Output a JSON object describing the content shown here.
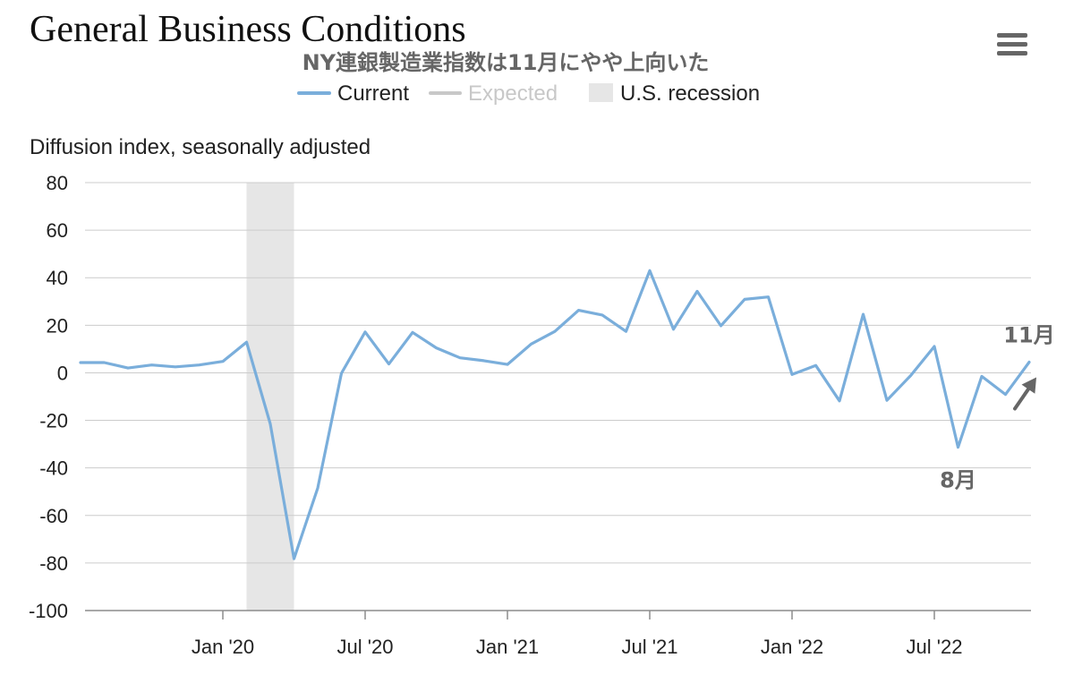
{
  "chart_data": {
    "type": "line",
    "title": "General Business Conditions",
    "subtitle": "NY連銀製造業指数は11月にやや上向いた",
    "ylabel": "Diffusion index, seasonally adjusted",
    "ylim": [
      -100,
      80
    ],
    "yticks": [
      80,
      60,
      40,
      20,
      0,
      -20,
      -40,
      -60,
      -80,
      -100
    ],
    "grid": true,
    "legend": {
      "placement": "top-center",
      "items": [
        {
          "label": "Current",
          "color": "#7aaedb",
          "kind": "line",
          "active": true
        },
        {
          "label": "Expected",
          "color": "#c8c8c8",
          "kind": "line",
          "active": false
        },
        {
          "label": "U.S. recession",
          "color": "#e6e6e6",
          "kind": "box",
          "active": true
        }
      ]
    },
    "x_ticks": [
      {
        "label": "Jan '20",
        "date": "2020-01"
      },
      {
        "label": "Jul '20",
        "date": "2020-07"
      },
      {
        "label": "Jan '21",
        "date": "2021-01"
      },
      {
        "label": "Jul '21",
        "date": "2021-07"
      },
      {
        "label": "Jan '22",
        "date": "2022-01"
      },
      {
        "label": "Jul '22",
        "date": "2022-07"
      }
    ],
    "x_range": [
      "2019-07",
      "2022-11"
    ],
    "recession": {
      "start": "2020-02",
      "end": "2020-04"
    },
    "series": [
      {
        "name": "Current",
        "color": "#7aaedb",
        "x": [
          "2019-07",
          "2019-08",
          "2019-09",
          "2019-10",
          "2019-11",
          "2019-12",
          "2020-01",
          "2020-02",
          "2020-03",
          "2020-04",
          "2020-05",
          "2020-06",
          "2020-07",
          "2020-08",
          "2020-09",
          "2020-10",
          "2020-11",
          "2020-12",
          "2021-01",
          "2021-02",
          "2021-03",
          "2021-04",
          "2021-05",
          "2021-06",
          "2021-07",
          "2021-08",
          "2021-09",
          "2021-10",
          "2021-11",
          "2021-12",
          "2022-01",
          "2022-02",
          "2022-03",
          "2022-04",
          "2022-05",
          "2022-06",
          "2022-07",
          "2022-08",
          "2022-09",
          "2022-10",
          "2022-11"
        ],
        "values": [
          4.3,
          4.3,
          2.0,
          3.3,
          2.5,
          3.3,
          4.8,
          12.9,
          -21.5,
          -78.2,
          -48.5,
          -0.2,
          17.2,
          3.7,
          17.0,
          10.5,
          6.3,
          5.1,
          3.5,
          12.1,
          17.4,
          26.3,
          24.3,
          17.4,
          43.0,
          18.3,
          34.3,
          19.8,
          30.9,
          31.9,
          -0.7,
          3.1,
          -11.8,
          24.6,
          -11.6,
          -1.2,
          11.1,
          -31.3,
          -1.5,
          -9.1,
          4.5
        ]
      }
    ],
    "annotations": [
      {
        "text": "8月",
        "target": "2022-08",
        "arrow": false
      },
      {
        "text": "11月",
        "target": "2022-11",
        "arrow": true,
        "color": "#666666"
      }
    ]
  },
  "menu": {
    "icon": "hamburger-menu-icon"
  }
}
